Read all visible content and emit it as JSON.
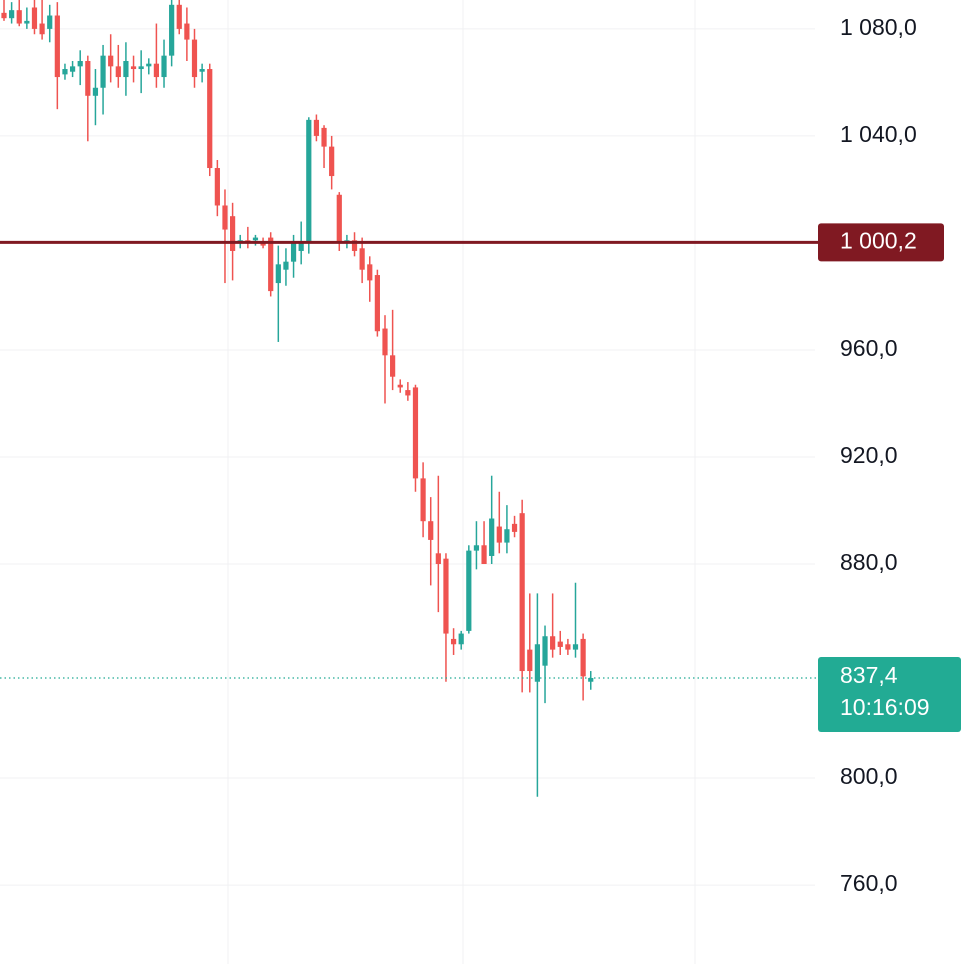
{
  "chart_data": {
    "type": "candlestick",
    "ylim": [
      730.5,
      1090.8
    ],
    "yticks": [
      {
        "value": 1080,
        "label": "1 080,0"
      },
      {
        "value": 1040,
        "label": "1 040,0"
      },
      {
        "value": 960,
        "label": "960,0"
      },
      {
        "value": 920,
        "label": "920,0"
      },
      {
        "value": 880,
        "label": "880,0"
      },
      {
        "value": 800,
        "label": "800,0"
      },
      {
        "value": 760,
        "label": "760,0"
      }
    ],
    "grid": true,
    "up_color": "#26a69a",
    "down_color": "#ef5350",
    "price_line": {
      "value": 1000.2,
      "label": "1 000,2",
      "color": "#801922"
    },
    "last_price": {
      "value": 837.4,
      "label": "837,4",
      "time": "10:16:09",
      "color": "#22ab94"
    },
    "values": [
      [
        1086,
        1091,
        1083,
        1084
      ],
      [
        1084,
        1090,
        1082,
        1087
      ],
      [
        1087,
        1091,
        1081,
        1082
      ],
      [
        1082,
        1088,
        1080,
        1083
      ],
      [
        1088,
        1091,
        1078,
        1080
      ],
      [
        1082,
        1091,
        1076,
        1078
      ],
      [
        1080,
        1089,
        1075,
        1085
      ],
      [
        1085,
        1090,
        1050,
        1062
      ],
      [
        1063,
        1067,
        1061,
        1065
      ],
      [
        1064,
        1068,
        1062,
        1066
      ],
      [
        1066,
        1072,
        1059,
        1068
      ],
      [
        1068,
        1070,
        1038,
        1055
      ],
      [
        1055,
        1065,
        1044,
        1058
      ],
      [
        1058,
        1074,
        1048,
        1070
      ],
      [
        1070,
        1078,
        1060,
        1066
      ],
      [
        1066,
        1074,
        1058,
        1062
      ],
      [
        1062,
        1075,
        1055,
        1068
      ],
      [
        1066,
        1070,
        1060,
        1065
      ],
      [
        1065,
        1072,
        1056,
        1066
      ],
      [
        1066,
        1069,
        1063,
        1067
      ],
      [
        1067,
        1082,
        1058,
        1062
      ],
      [
        1062,
        1076,
        1058,
        1070
      ],
      [
        1070,
        1091,
        1066,
        1089
      ],
      [
        1089,
        1091,
        1078,
        1080
      ],
      [
        1082,
        1088,
        1068,
        1076
      ],
      [
        1076,
        1080,
        1058,
        1062
      ],
      [
        1064,
        1067,
        1060,
        1065
      ],
      [
        1065,
        1067,
        1025,
        1028
      ],
      [
        1028,
        1031,
        1010,
        1014
      ],
      [
        1014,
        1020,
        985,
        1005
      ],
      [
        1010,
        1015,
        986,
        997
      ],
      [
        1000,
        1003,
        998,
        1001
      ],
      [
        1001,
        1006,
        998,
        1000
      ],
      [
        1001,
        1003,
        999,
        1002
      ],
      [
        1000,
        1002,
        998,
        999
      ],
      [
        1002,
        1004,
        980,
        982
      ],
      [
        985,
        999,
        963,
        992
      ],
      [
        990,
        998,
        984,
        993
      ],
      [
        993,
        1003,
        987,
        1000
      ],
      [
        997,
        1008,
        992,
        1000
      ],
      [
        1000,
        1047,
        996,
        1046
      ],
      [
        1046,
        1048,
        1038,
        1040
      ],
      [
        1043,
        1044,
        1028,
        1036
      ],
      [
        1036,
        1040,
        1020,
        1025
      ],
      [
        1018,
        1019,
        997,
        1000
      ],
      [
        1000,
        1003,
        998,
        1001
      ],
      [
        1001,
        1004,
        995,
        997
      ],
      [
        998,
        1002,
        985,
        990
      ],
      [
        992,
        995,
        978,
        986
      ],
      [
        988,
        990,
        965,
        967
      ],
      [
        968,
        973,
        940,
        958
      ],
      [
        958,
        975,
        945,
        950
      ],
      [
        947,
        949,
        944,
        946
      ],
      [
        945,
        948,
        941,
        943
      ],
      [
        946,
        947,
        907,
        912
      ],
      [
        912,
        918,
        890,
        896
      ],
      [
        896,
        905,
        872,
        889
      ],
      [
        884,
        913,
        862,
        880
      ],
      [
        882,
        884,
        836,
        854
      ],
      [
        852,
        856,
        846,
        850
      ],
      [
        850,
        855,
        848,
        854
      ],
      [
        855,
        887,
        854,
        885
      ],
      [
        885,
        896,
        878,
        887
      ],
      [
        887,
        896,
        880,
        880
      ],
      [
        883,
        913,
        880,
        897
      ],
      [
        894,
        907,
        884,
        888
      ],
      [
        888,
        902,
        884,
        893
      ],
      [
        895,
        898,
        890,
        892
      ],
      [
        899,
        904,
        832,
        840
      ],
      [
        848,
        869,
        832,
        840
      ],
      [
        836,
        869,
        793,
        850
      ],
      [
        842,
        857,
        828,
        853
      ],
      [
        853,
        869,
        845,
        848
      ],
      [
        851,
        855,
        846,
        849
      ],
      [
        850,
        852,
        846,
        848
      ],
      [
        848,
        873,
        845,
        850
      ],
      [
        852,
        854,
        829,
        838
      ],
      [
        836,
        840,
        833,
        837.4
      ]
    ]
  }
}
